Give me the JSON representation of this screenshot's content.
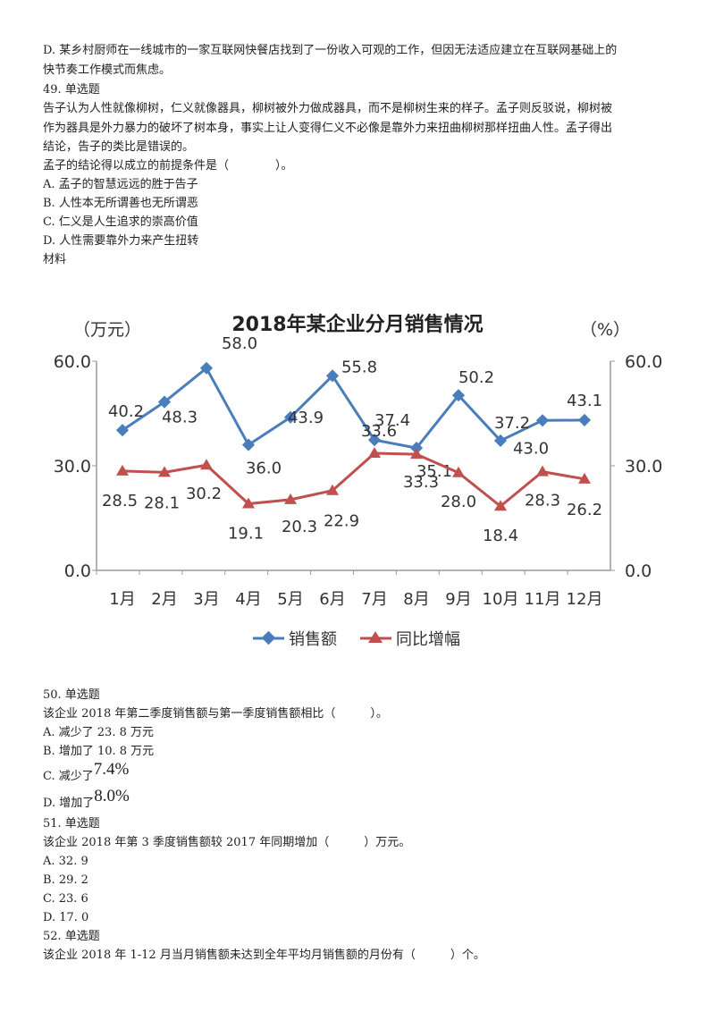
{
  "top_text": [
    "D. 某乡村厨师在一线城市的一家互联网快餐店找到了一份收入可观的工作，但因无法适应建立在互联网基础上的",
    "快节奏工作模式而焦虑。",
    "49. 单选题",
    "告子认为人性就像柳树，仁义就像器具，柳树被外力做成器具，而不是柳树生来的样子。孟子则反驳说，柳树被",
    "作为器具是外力暴力的破坏了树本身，事实上让人变得仁义不必像是靠外力来扭曲柳树那样扭曲人性。孟子得出",
    "结论，告子的类比是错误的。",
    "孟子的结论得以成立的前提条件是（　　　　）。",
    "A. 孟子的智慧远远的胜于告子",
    "B. 人性本无所谓善也无所谓恶",
    "C. 仁义是人生追求的崇高价值",
    "D. 人性需要靠外力来产生扭转",
    "材料"
  ],
  "chart_data": {
    "type": "line",
    "title": "2018年某企业分月销售情况",
    "ylabel_left": "（万元）",
    "ylabel_right": "（%）",
    "categories": [
      "1月",
      "2月",
      "3月",
      "4月",
      "5月",
      "6月",
      "7月",
      "8月",
      "9月",
      "10月",
      "11月",
      "12月"
    ],
    "ylim": [
      0,
      60
    ],
    "yticks": [
      "0.0",
      "30.0",
      "60.0"
    ],
    "y2ticks": [
      "0.0",
      "30.0",
      "60.0"
    ],
    "legend_position": "bottom",
    "series": [
      {
        "name": "销售额",
        "color": "#4a7ebb",
        "marker": "diamond",
        "axis": "left",
        "values": [
          40.2,
          48.3,
          58.0,
          36.0,
          43.9,
          55.8,
          37.4,
          35.1,
          50.2,
          37.2,
          43.0,
          43.1
        ]
      },
      {
        "name": "同比增幅",
        "color": "#c0504d",
        "marker": "triangle",
        "axis": "right",
        "values": [
          28.5,
          28.1,
          30.2,
          19.1,
          20.3,
          22.9,
          33.6,
          33.3,
          28.0,
          18.4,
          28.3,
          26.2
        ]
      }
    ]
  },
  "bottom_text": [
    "50. 单选题",
    "该企业 2018 年第二季度销售额与第一季度销售额相比（　　　）。",
    "A. 减少了 23. 8 万元",
    "B. 增加了 10. 8 万元",
    "51. 单选题",
    "该企业 2018 年第 3 季度销售额较 2017 年同期增加（　　　）万元。",
    "A. 32. 9",
    "B. 29. 2",
    "C. 23. 6",
    "D. 17. 0",
    "52. 单选题",
    "该企业 2018 年 1-12 月当月销售额未达到全年平均月销售额的月份有（　　　）个。"
  ],
  "option_c": {
    "prefix": "C. 减少了",
    "value": "7.4%"
  },
  "option_d": {
    "prefix": "D. 增加了",
    "value": "8.0%"
  }
}
